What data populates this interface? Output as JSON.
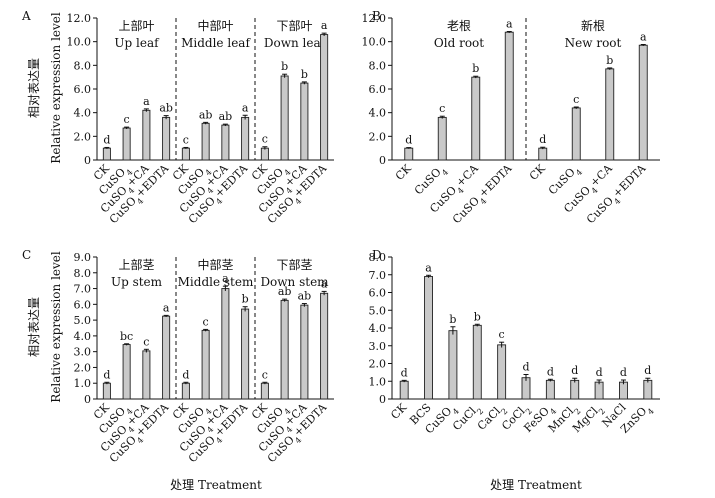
{
  "figure": {
    "xlabel": "处理 Treatment",
    "ylabel_cn": "相对表达量",
    "ylabel_en": "Relative expression level"
  },
  "chart_data": [
    {
      "panel": "A",
      "type": "bar",
      "ylim": [
        0,
        12
      ],
      "yticks": [
        "0",
        "2.0",
        "4.0",
        "6.0",
        "8.0",
        "10.0",
        "12.0"
      ],
      "group_separators_after": [
        4,
        8
      ],
      "groups": [
        {
          "cn": "上部叶",
          "en": "Up leaf"
        },
        {
          "cn": "中部叶",
          "en": "Middle leaf"
        },
        {
          "cn": "下部叶",
          "en": "Down leaf"
        }
      ],
      "bars": [
        {
          "label": "CK",
          "value": 1.0,
          "err": 0.06,
          "sig": "d"
        },
        {
          "label": "CuSO₄",
          "value": 2.7,
          "err": 0.08,
          "sig": "c"
        },
        {
          "label": "CuSO₄+CA",
          "value": 4.2,
          "err": 0.12,
          "sig": "a"
        },
        {
          "label": "CuSO₄+EDTA",
          "value": 3.6,
          "err": 0.15,
          "sig": "ab"
        },
        {
          "label": "CK",
          "value": 1.0,
          "err": 0.06,
          "sig": "c"
        },
        {
          "label": "CuSO₄",
          "value": 3.1,
          "err": 0.08,
          "sig": "ab"
        },
        {
          "label": "CuSO₄+CA",
          "value": 2.95,
          "err": 0.08,
          "sig": "ab"
        },
        {
          "label": "CuSO₄+EDTA",
          "value": 3.6,
          "err": 0.18,
          "sig": "a"
        },
        {
          "label": "CK",
          "value": 1.0,
          "err": 0.12,
          "sig": "c"
        },
        {
          "label": "CuSO₄",
          "value": 7.1,
          "err": 0.15,
          "sig": "b"
        },
        {
          "label": "CuSO₄+CA",
          "value": 6.5,
          "err": 0.1,
          "sig": "b"
        },
        {
          "label": "CuSO₄+EDTA",
          "value": 10.6,
          "err": 0.12,
          "sig": "a"
        }
      ]
    },
    {
      "panel": "B",
      "type": "bar",
      "ylim": [
        0,
        12
      ],
      "yticks": [
        "0",
        "2.0",
        "4.0",
        "6.0",
        "8.0",
        "10.0",
        "12.0"
      ],
      "group_separators_after": [
        4
      ],
      "groups": [
        {
          "cn": "老根",
          "en": "Old root"
        },
        {
          "cn": "新根",
          "en": "New root"
        }
      ],
      "bars": [
        {
          "label": "CK",
          "value": 1.0,
          "err": 0.05,
          "sig": "d"
        },
        {
          "label": "CuSO₄",
          "value": 3.6,
          "err": 0.1,
          "sig": "c"
        },
        {
          "label": "CuSO₄+CA",
          "value": 7.0,
          "err": 0.08,
          "sig": "b"
        },
        {
          "label": "CuSO₄+EDTA",
          "value": 10.8,
          "err": 0.06,
          "sig": "a"
        },
        {
          "label": "CK",
          "value": 1.0,
          "err": 0.08,
          "sig": "d"
        },
        {
          "label": "CuSO₄",
          "value": 4.4,
          "err": 0.08,
          "sig": "c"
        },
        {
          "label": "CuSO₄+CA",
          "value": 7.7,
          "err": 0.08,
          "sig": "b"
        },
        {
          "label": "CuSO₄+EDTA",
          "value": 9.7,
          "err": 0.06,
          "sig": "a"
        }
      ]
    },
    {
      "panel": "C",
      "type": "bar",
      "ylim": [
        0,
        9
      ],
      "yticks": [
        "0",
        "1.0",
        "2.0",
        "3.0",
        "4.0",
        "5.0",
        "6.0",
        "7.0",
        "8.0",
        "9.0"
      ],
      "group_separators_after": [
        4,
        8
      ],
      "groups": [
        {
          "cn": "上部茎",
          "en": "Up stem"
        },
        {
          "cn": "中部茎",
          "en": "Middle stem"
        },
        {
          "cn": "下部茎",
          "en": "Down stem"
        }
      ],
      "bars": [
        {
          "label": "CK",
          "value": 1.0,
          "err": 0.06,
          "sig": "d"
        },
        {
          "label": "CuSO₄",
          "value": 3.45,
          "err": 0.05,
          "sig": "bc"
        },
        {
          "label": "CuSO₄+CA",
          "value": 3.05,
          "err": 0.1,
          "sig": "c"
        },
        {
          "label": "CuSO₄+EDTA",
          "value": 5.25,
          "err": 0.05,
          "sig": "a"
        },
        {
          "label": "CK",
          "value": 1.0,
          "err": 0.06,
          "sig": "d"
        },
        {
          "label": "CuSO₄",
          "value": 4.35,
          "err": 0.06,
          "sig": "c"
        },
        {
          "label": "CuSO₄+CA",
          "value": 7.0,
          "err": 0.15,
          "sig": "a"
        },
        {
          "label": "CuSO₄+EDTA",
          "value": 5.7,
          "err": 0.15,
          "sig": "b"
        },
        {
          "label": "CK",
          "value": 1.0,
          "err": 0.06,
          "sig": "c"
        },
        {
          "label": "CuSO₄",
          "value": 6.25,
          "err": 0.08,
          "sig": "ab"
        },
        {
          "label": "CuSO₄+CA",
          "value": 5.95,
          "err": 0.1,
          "sig": "ab"
        },
        {
          "label": "CuSO₄+EDTA",
          "value": 6.7,
          "err": 0.12,
          "sig": "a"
        }
      ]
    },
    {
      "panel": "D",
      "type": "bar",
      "ylim": [
        0,
        8
      ],
      "yticks": [
        "0",
        "1.0",
        "2.0",
        "3.0",
        "4.0",
        "5.0",
        "6.0",
        "7.0",
        "8.0"
      ],
      "group_separators_after": [],
      "groups": [],
      "bars": [
        {
          "label": "CK",
          "value": 1.0,
          "err": 0.05,
          "sig": "d"
        },
        {
          "label": "BCS",
          "value": 6.9,
          "err": 0.07,
          "sig": "a"
        },
        {
          "label": "CuSO₄",
          "value": 3.85,
          "err": 0.22,
          "sig": "b"
        },
        {
          "label": "CuCl₂",
          "value": 4.15,
          "err": 0.06,
          "sig": "b"
        },
        {
          "label": "CaCl₂",
          "value": 3.05,
          "err": 0.15,
          "sig": "c"
        },
        {
          "label": "CoCl₂",
          "value": 1.2,
          "err": 0.18,
          "sig": "d"
        },
        {
          "label": "FeSO₄",
          "value": 1.05,
          "err": 0.06,
          "sig": "d"
        },
        {
          "label": "MnCl₂",
          "value": 1.05,
          "err": 0.12,
          "sig": "d"
        },
        {
          "label": "MgCl₂",
          "value": 0.95,
          "err": 0.12,
          "sig": "d"
        },
        {
          "label": "NaCl",
          "value": 0.95,
          "err": 0.12,
          "sig": "d"
        },
        {
          "label": "ZnSO₄",
          "value": 1.05,
          "err": 0.12,
          "sig": "d"
        }
      ]
    }
  ]
}
